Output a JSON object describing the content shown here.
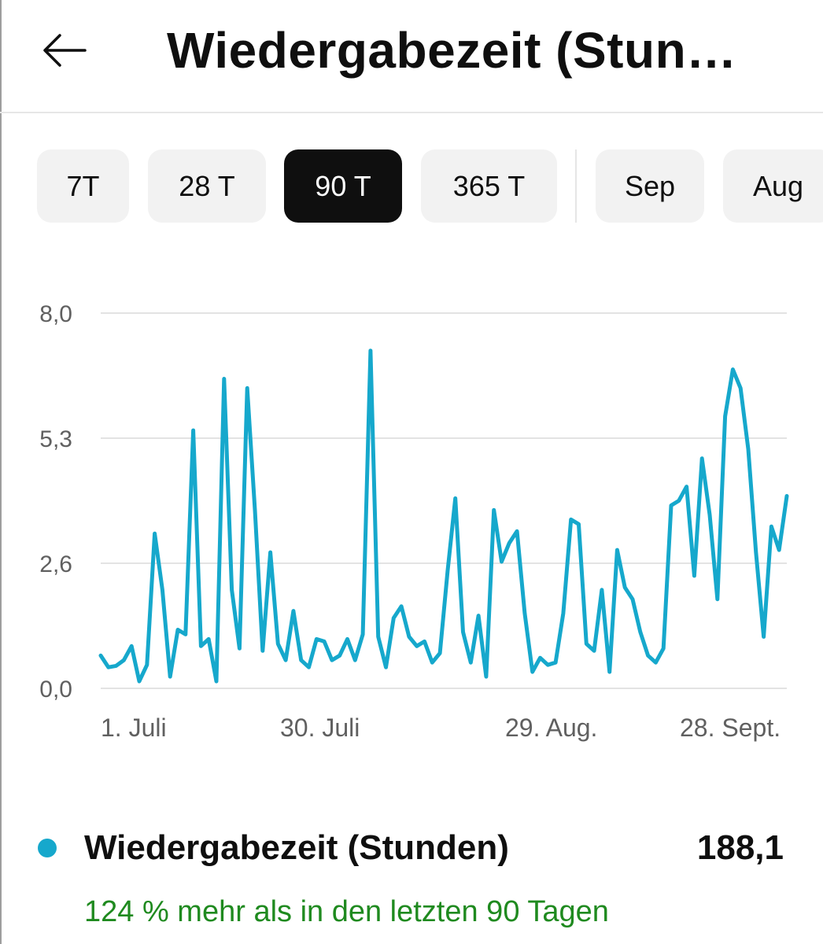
{
  "header": {
    "title": "Wiedergabezeit (Stun…",
    "back_icon": "arrow-left-icon"
  },
  "filters": {
    "chips": [
      {
        "label": "7T",
        "selected": false
      },
      {
        "label": "28 T",
        "selected": false
      },
      {
        "label": "90 T",
        "selected": true
      },
      {
        "label": "365 T",
        "selected": false
      },
      {
        "label": "Sep",
        "selected": false
      },
      {
        "label": "Aug",
        "selected": false
      }
    ]
  },
  "colors": {
    "line": "#16a8cc",
    "selected_chip_bg": "#0f0f0f",
    "chip_bg": "#f2f2f2",
    "positive": "#1f8a1f"
  },
  "chart_data": {
    "type": "line",
    "x_tick_labels": [
      "1. Juli",
      "30. Juli",
      "29. Aug.",
      "28. Sept."
    ],
    "y_tick_labels": [
      "8,0",
      "5,3",
      "2,6",
      "0,0"
    ],
    "ylim": [
      0,
      8.0
    ],
    "grid": true,
    "series": [
      {
        "name": "Wiedergabezeit (Stunden)",
        "values": [
          0.7,
          0.45,
          0.48,
          0.6,
          0.9,
          0.15,
          0.5,
          3.3,
          2.1,
          0.25,
          1.25,
          1.15,
          5.5,
          0.9,
          1.05,
          0.15,
          6.6,
          2.1,
          0.85,
          6.4,
          3.8,
          0.8,
          2.9,
          0.95,
          0.6,
          1.65,
          0.6,
          0.45,
          1.05,
          1.0,
          0.6,
          0.7,
          1.05,
          0.6,
          1.15,
          7.2,
          1.1,
          0.45,
          1.5,
          1.75,
          1.1,
          0.9,
          1.0,
          0.55,
          0.75,
          2.5,
          4.05,
          1.2,
          0.55,
          1.55,
          0.25,
          3.8,
          2.7,
          3.1,
          3.35,
          1.6,
          0.35,
          0.65,
          0.5,
          0.55,
          1.6,
          3.6,
          3.5,
          0.95,
          0.8,
          2.1,
          0.35,
          2.95,
          2.15,
          1.9,
          1.2,
          0.7,
          0.55,
          0.85,
          3.9,
          4.0,
          4.3,
          2.4,
          4.9,
          3.7,
          1.9,
          5.8,
          6.8,
          6.4,
          5.1,
          2.9,
          1.1,
          3.45,
          2.95,
          4.1
        ]
      }
    ]
  },
  "legend": {
    "name": "Wiedergabezeit (Stunden)",
    "value": "188,1"
  },
  "comparison": {
    "text": "124 % mehr als in den letzten 90 Tagen"
  }
}
